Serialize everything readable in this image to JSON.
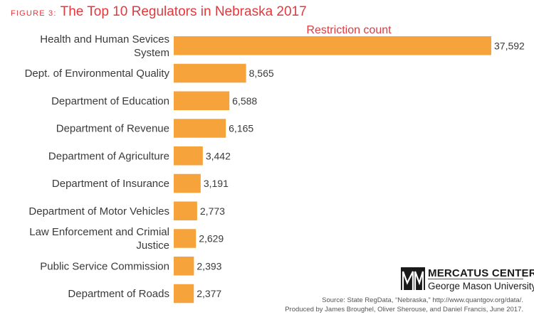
{
  "figure_label": "FIGURE 3:",
  "title": "The Top 10 Regulators in Nebraska 2017",
  "colors": {
    "accent": "#e0393e",
    "bar": "#f6a33c",
    "text": "#3a3a3a"
  },
  "logo": {
    "line1": "MERCATUS CENTER",
    "line2": "George Mason University"
  },
  "source": {
    "line1": "Source: State RegData, “Nebraska,” http://www.quantgov.org/data/.",
    "line2": "Produced by James Broughel, Oliver Sherouse, and Daniel Francis, June 2017."
  },
  "chart_data": {
    "type": "bar",
    "orientation": "horizontal",
    "title": "The Top 10 Regulators in Nebraska 2017",
    "categories": [
      [
        "Health and Human Sevices",
        "System"
      ],
      [
        "Dept. of Environmental Quality"
      ],
      [
        "Department of Education"
      ],
      [
        "Department of Revenue"
      ],
      [
        "Department of Agriculture"
      ],
      [
        "Department of Insurance"
      ],
      [
        "Department of Motor Vehicles"
      ],
      [
        "Law Enforcement and Crimial",
        "Justice"
      ],
      [
        "Public Service Commission"
      ],
      [
        "Department of Roads"
      ]
    ],
    "series": [
      {
        "name": "Restriction count",
        "values": [
          37592,
          8565,
          6588,
          6165,
          3442,
          3191,
          2773,
          2629,
          2393,
          2377
        ],
        "labels": [
          "37,592",
          "8,565",
          "6,588",
          "6,165",
          "3,442",
          "3,191",
          "2,773",
          "2,629",
          "2,393",
          "2,377"
        ]
      }
    ],
    "xlim": [
      0,
      37592
    ],
    "grid": false,
    "legend": "none"
  }
}
